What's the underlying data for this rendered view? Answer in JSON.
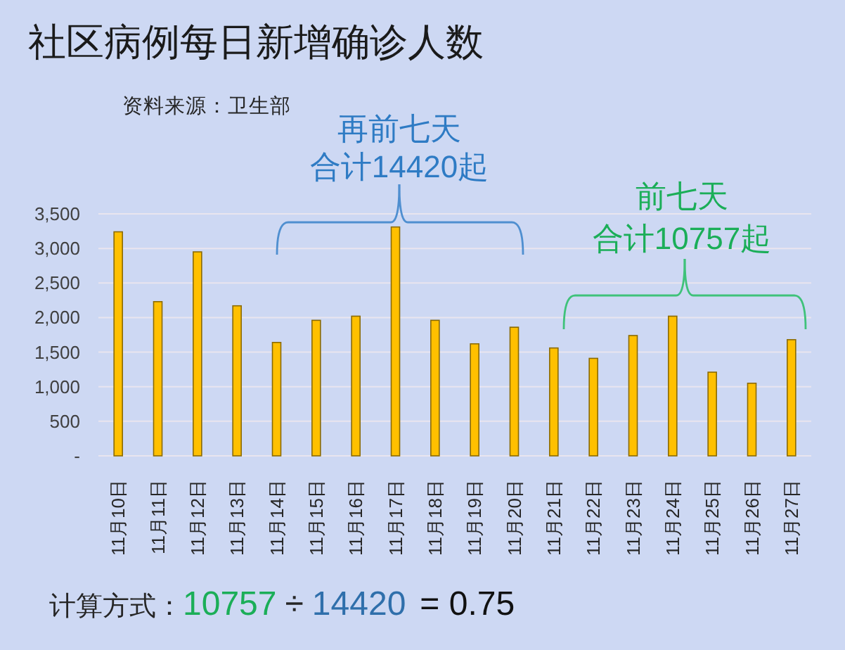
{
  "chart_data": {
    "type": "bar",
    "title": "社区病例每日新增确诊人数",
    "categories": [
      "11月10日",
      "11月11日",
      "11月12日",
      "11月13日",
      "11月14日",
      "11月15日",
      "11月16日",
      "11月17日",
      "11月18日",
      "11月19日",
      "11月20日",
      "11月21日",
      "11月22日",
      "11月23日",
      "11月24日",
      "11月25日",
      "11月26日",
      "11月27日"
    ],
    "values": [
      3240,
      2230,
      2950,
      2170,
      1640,
      1960,
      2020,
      3310,
      1960,
      1620,
      1860,
      1560,
      1410,
      1740,
      2020,
      1210,
      1050,
      1680
    ],
    "color": "#ffc000",
    "ylim": [
      0,
      3500
    ],
    "yticks": [
      {
        "value": 0,
        "label": "-"
      },
      500,
      {
        "value": 1000,
        "label": "1,000"
      },
      {
        "value": 1500,
        "label": "1,500"
      },
      {
        "value": 2000,
        "label": "2,000"
      },
      {
        "value": 2500,
        "label": "2,500"
      },
      {
        "value": 3000,
        "label": "3,000"
      },
      {
        "value": 3500,
        "label": "3,500"
      }
    ],
    "grid": "y",
    "annotations": [
      "资料来源：卫生部",
      "再前七天",
      "合计14420起",
      "前七天",
      "合计10757起",
      "计算方式：",
      "10757",
      "÷",
      "14420",
      "= 0.75"
    ]
  }
}
